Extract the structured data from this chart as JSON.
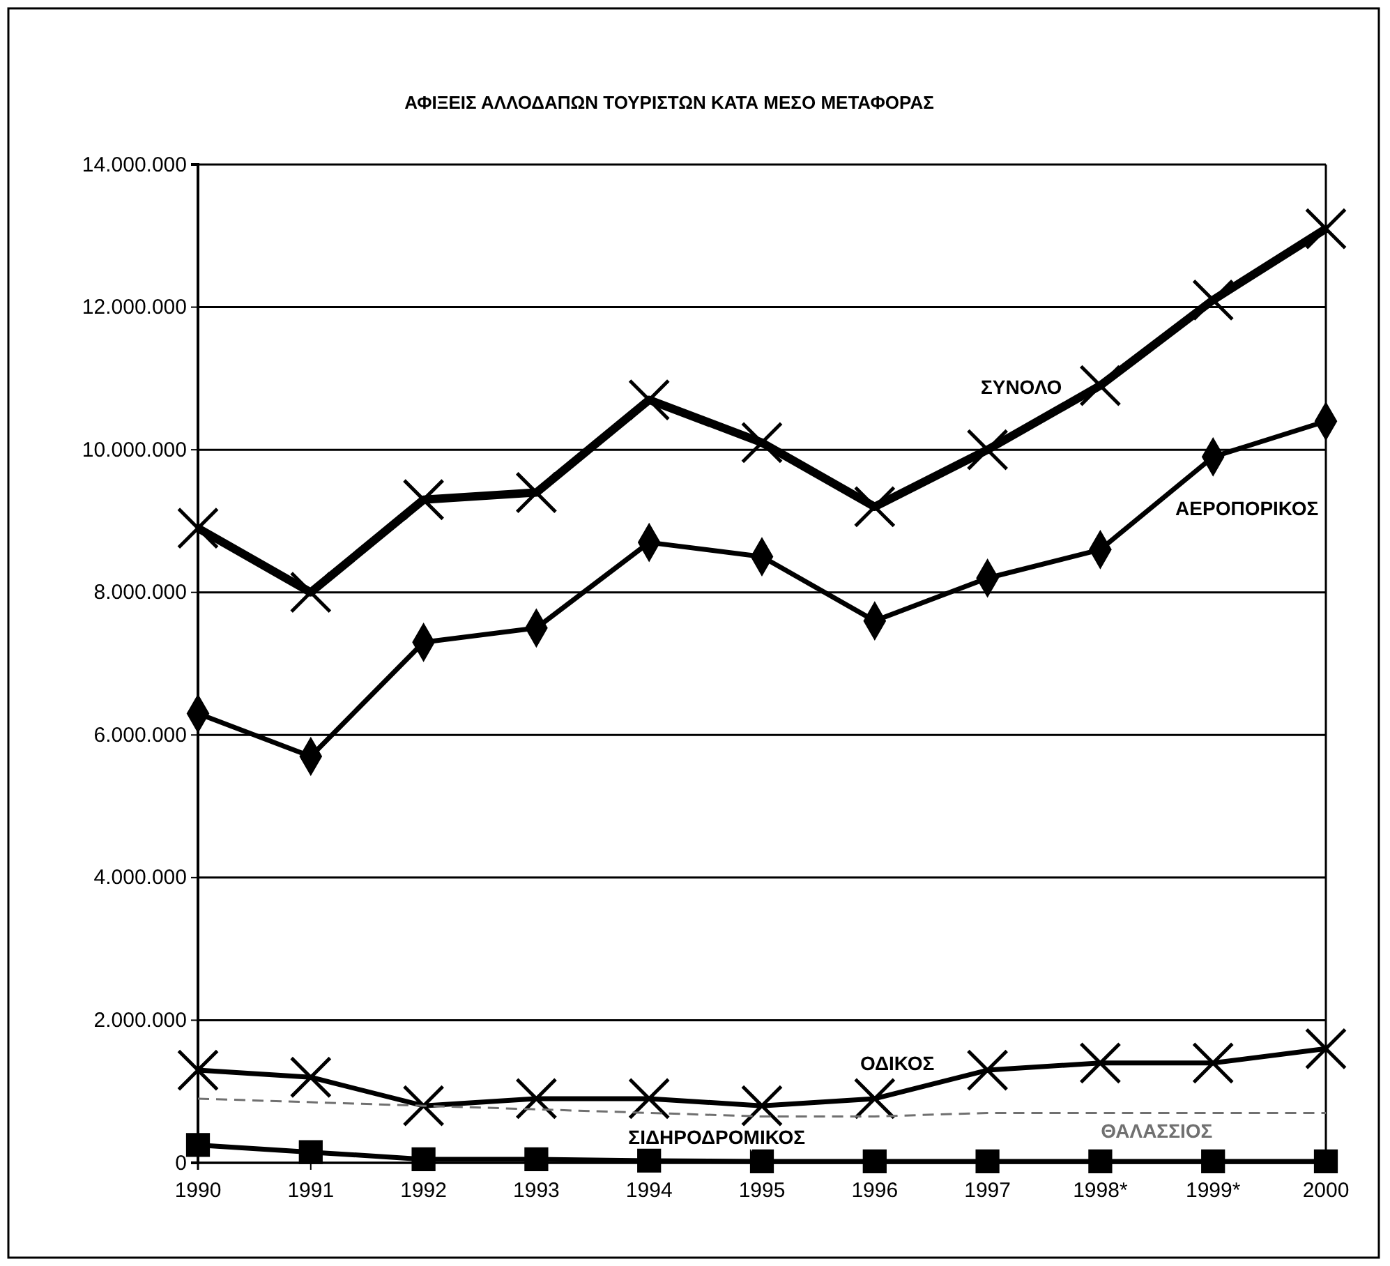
{
  "chart_data": {
    "type": "line",
    "title": "ΑΦΙΞΕΙΣ ΑΛΛΟΔΑΠΩΝ ΤΟΥΡΙΣΤΩΝ ΚΑΤΑ ΜΕΣΟ ΜΕΤΑΦΟΡΑΣ",
    "categories": [
      "1990",
      "1991",
      "1992",
      "1993",
      "1994",
      "1995",
      "1996",
      "1997",
      "1998*",
      "1999*",
      "2000"
    ],
    "ylim": [
      0,
      14000000
    ],
    "yticks": [
      {
        "value": 0,
        "label": "0"
      },
      {
        "value": 2000000,
        "label": "2.000.000"
      },
      {
        "value": 4000000,
        "label": "4.000.000"
      },
      {
        "value": 6000000,
        "label": "6.000.000"
      },
      {
        "value": 8000000,
        "label": "8.000.000"
      },
      {
        "value": 10000000,
        "label": "10.000.000"
      },
      {
        "value": 12000000,
        "label": "12.000.000"
      },
      {
        "value": 14000000,
        "label": "14.000.000"
      }
    ],
    "grid": "y",
    "legend": false,
    "series": [
      {
        "name": "ΣΥΝΟΛΟ",
        "color": "#000000",
        "marker": "cross",
        "values": [
          8900000,
          8000000,
          9300000,
          9400000,
          10700000,
          10100000,
          9200000,
          10000000,
          10900000,
          12100000,
          13100000
        ]
      },
      {
        "name": "ΑΕΡΟΠΟΡΙΚΟΣ",
        "color": "#000000",
        "marker": "diamond",
        "values": [
          6300000,
          5700000,
          7300000,
          7500000,
          8700000,
          8500000,
          7600000,
          8200000,
          8600000,
          9900000,
          10400000
        ]
      },
      {
        "name": "ΟΔΙΚΟΣ",
        "color": "#000000",
        "marker": "cross",
        "values": [
          1300000,
          1200000,
          800000,
          900000,
          900000,
          800000,
          900000,
          1300000,
          1400000,
          1400000,
          1600000
        ]
      },
      {
        "name": "ΘΑΛΑΣΣΙΟΣ",
        "color": "#707070",
        "marker": "none",
        "line_style": "dashed",
        "values": [
          900000,
          850000,
          800000,
          750000,
          700000,
          650000,
          650000,
          700000,
          700000,
          700000,
          700000
        ]
      },
      {
        "name": "ΣΙΔΗΡΟΔΡΟΜΙΚΟΣ",
        "color": "#000000",
        "marker": "square",
        "values": [
          250000,
          150000,
          50000,
          50000,
          30000,
          20000,
          20000,
          20000,
          20000,
          20000,
          20000
        ]
      }
    ]
  }
}
